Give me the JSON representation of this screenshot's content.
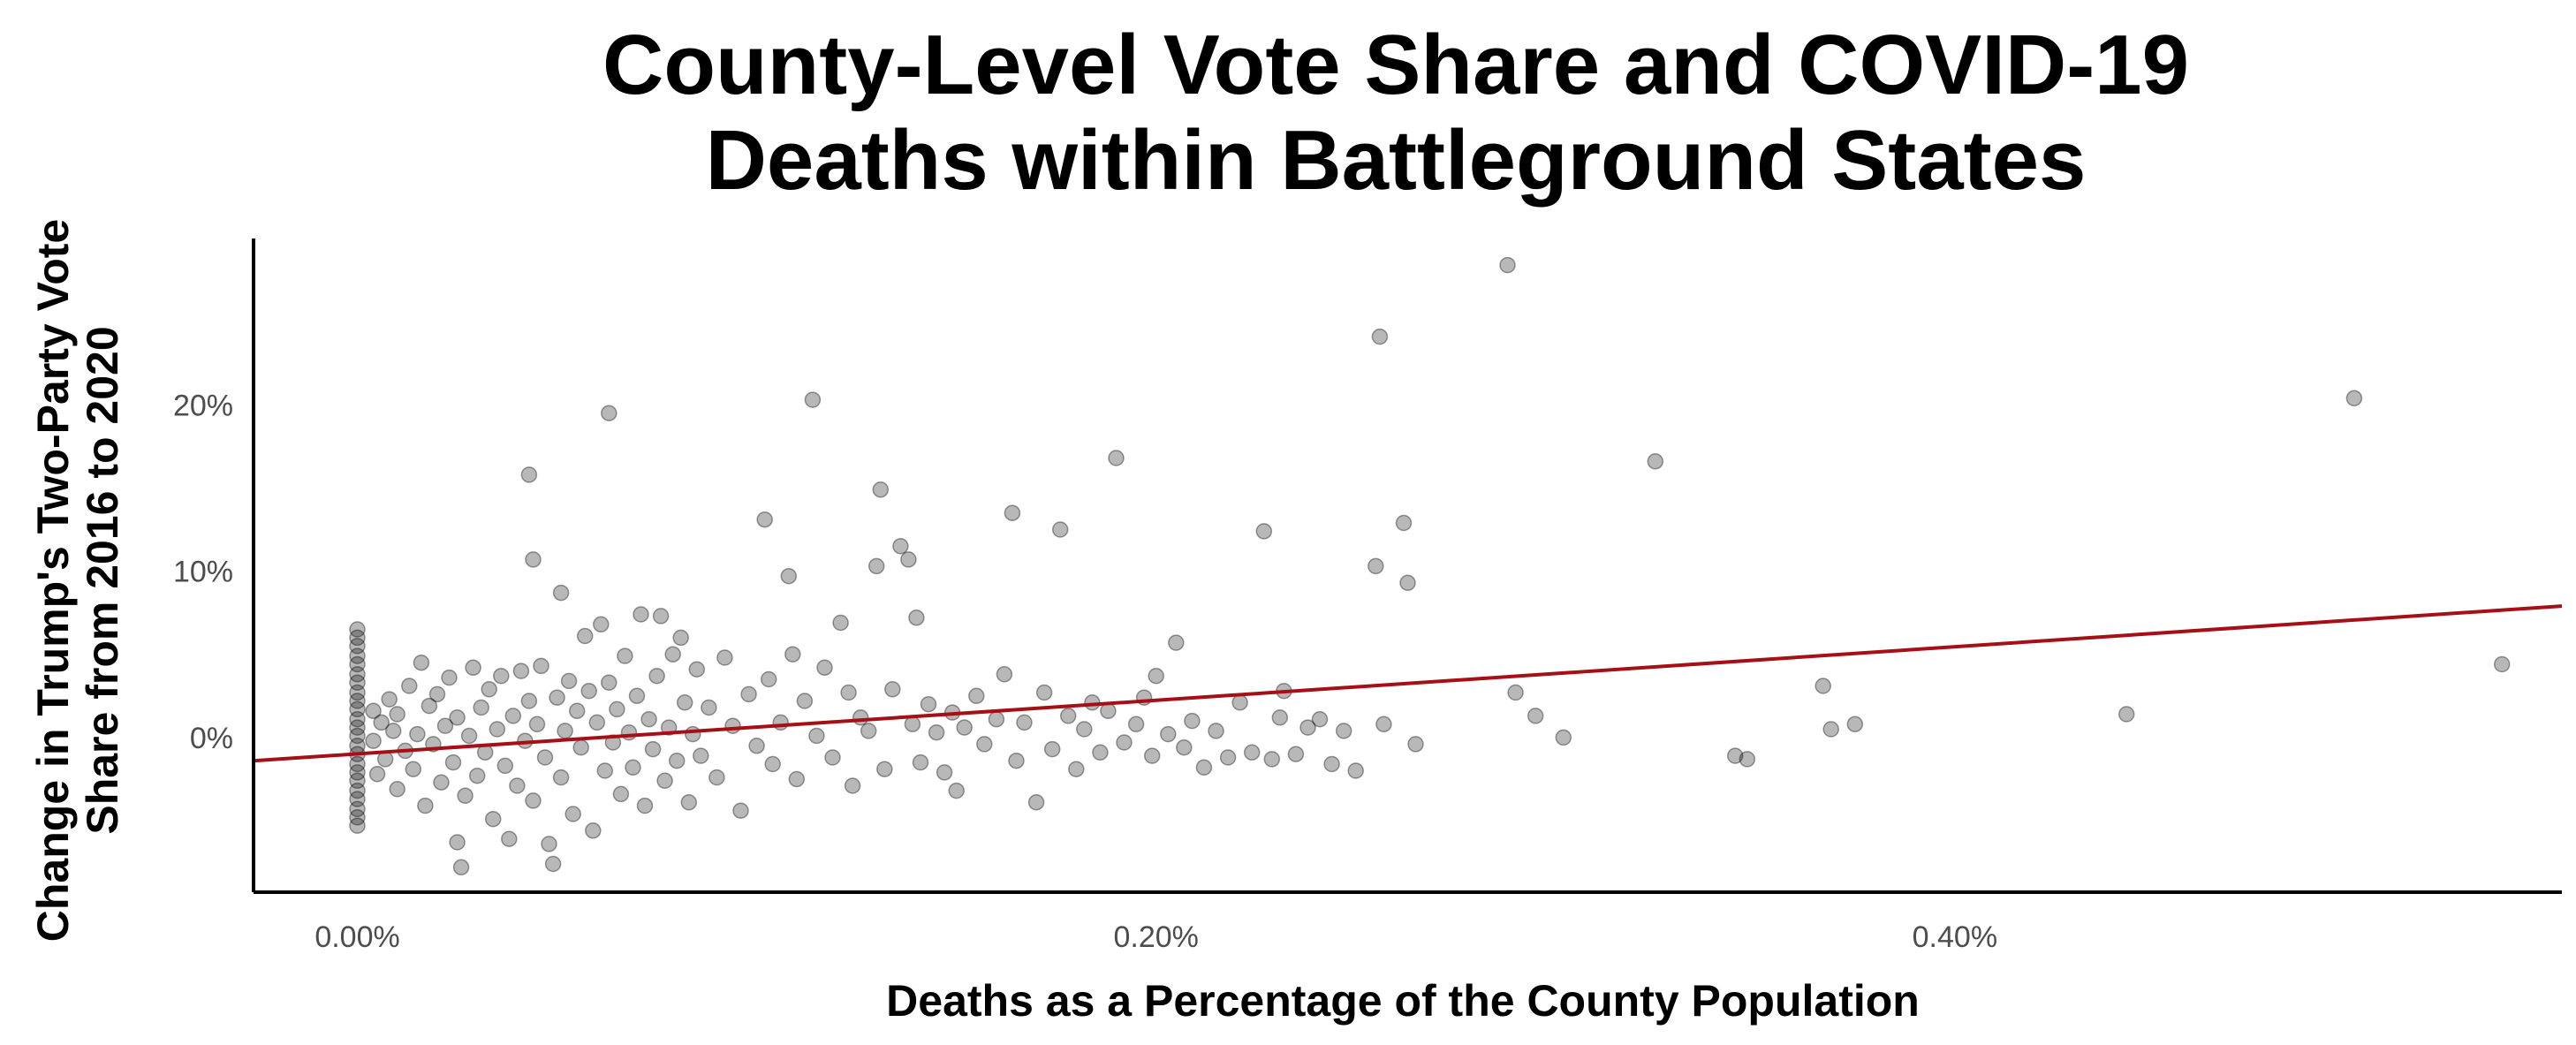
{
  "chart_data": {
    "type": "scatter",
    "title_lines": [
      "County-Level Vote Share and COVID-19",
      "Deaths within Battleground States"
    ],
    "xlabel": "Deaths as a Percentage of the County Population",
    "ylabel_lines": [
      "Change in Trump's Two-Party Vote",
      "Share from 2016 to 2020"
    ],
    "x_unit": "percent of county population",
    "y_unit": "percentage points",
    "xlim": [
      -0.026,
      0.552
    ],
    "ylim": [
      -9.3,
      30.0
    ],
    "x_ticks": [
      {
        "value": 0.0,
        "label": "0.00%"
      },
      {
        "value": 0.2,
        "label": "0.20%"
      },
      {
        "value": 0.4,
        "label": "0.40%"
      }
    ],
    "y_ticks": [
      {
        "value": 0,
        "label": "0%"
      },
      {
        "value": 10,
        "label": "10%"
      },
      {
        "value": 20,
        "label": "20%"
      }
    ],
    "grid": false,
    "point_color": "#000000",
    "point_opacity": 0.28,
    "trend_line": {
      "color": "#a50f15",
      "points": [
        [
          -0.026,
          -1.4
        ],
        [
          0.552,
          7.9
        ]
      ]
    },
    "points": [
      [
        0.0,
        6.5
      ],
      [
        0.0,
        6.0
      ],
      [
        0.0,
        5.5
      ],
      [
        0.0,
        4.9
      ],
      [
        0.0,
        4.4
      ],
      [
        0.0,
        3.8
      ],
      [
        0.0,
        3.3
      ],
      [
        0.0,
        2.7
      ],
      [
        0.0,
        2.2
      ],
      [
        0.0,
        1.7
      ],
      [
        0.0,
        1.1
      ],
      [
        0.0,
        0.6
      ],
      [
        0.0,
        0.1
      ],
      [
        0.0,
        -0.5
      ],
      [
        0.0,
        -1.0
      ],
      [
        0.0,
        -1.6
      ],
      [
        0.0,
        -2.1
      ],
      [
        0.0,
        -2.6
      ],
      [
        0.0,
        -3.2
      ],
      [
        0.0,
        -3.7
      ],
      [
        0.0,
        -4.3
      ],
      [
        0.0,
        -4.8
      ],
      [
        0.0,
        -5.3
      ],
      [
        0.004,
        1.6
      ],
      [
        0.004,
        -0.2
      ],
      [
        0.005,
        -2.2
      ],
      [
        0.006,
        0.9
      ],
      [
        0.007,
        -1.3
      ],
      [
        0.008,
        2.3
      ],
      [
        0.009,
        0.4
      ],
      [
        0.01,
        -3.1
      ],
      [
        0.01,
        1.4
      ],
      [
        0.012,
        -0.8
      ],
      [
        0.013,
        3.1
      ],
      [
        0.014,
        -1.9
      ],
      [
        0.015,
        0.2
      ],
      [
        0.016,
        4.5
      ],
      [
        0.017,
        -4.1
      ],
      [
        0.018,
        1.9
      ],
      [
        0.019,
        -0.4
      ],
      [
        0.02,
        2.6
      ],
      [
        0.021,
        -2.7
      ],
      [
        0.022,
        0.7
      ],
      [
        0.023,
        3.6
      ],
      [
        0.024,
        -1.5
      ],
      [
        0.025,
        -6.3
      ],
      [
        0.025,
        1.2
      ],
      [
        0.026,
        -7.8
      ],
      [
        0.027,
        -3.5
      ],
      [
        0.028,
        0.1
      ],
      [
        0.029,
        4.2
      ],
      [
        0.03,
        -2.3
      ],
      [
        0.031,
        1.8
      ],
      [
        0.032,
        -0.9
      ],
      [
        0.033,
        2.9
      ],
      [
        0.034,
        -4.9
      ],
      [
        0.035,
        0.5
      ],
      [
        0.036,
        3.7
      ],
      [
        0.037,
        -1.7
      ],
      [
        0.038,
        -6.1
      ],
      [
        0.039,
        1.3
      ],
      [
        0.04,
        -2.9
      ],
      [
        0.041,
        4.0
      ],
      [
        0.042,
        -0.2
      ],
      [
        0.043,
        15.8
      ],
      [
        0.043,
        2.2
      ],
      [
        0.044,
        10.7
      ],
      [
        0.044,
        -3.8
      ],
      [
        0.045,
        0.8
      ],
      [
        0.046,
        4.3
      ],
      [
        0.047,
        -1.2
      ],
      [
        0.048,
        -6.4
      ],
      [
        0.049,
        -7.6
      ],
      [
        0.05,
        2.4
      ],
      [
        0.051,
        8.7
      ],
      [
        0.051,
        -2.4
      ],
      [
        0.052,
        0.4
      ],
      [
        0.053,
        3.4
      ],
      [
        0.054,
        -4.6
      ],
      [
        0.055,
        1.6
      ],
      [
        0.056,
        -0.6
      ],
      [
        0.057,
        6.1
      ],
      [
        0.058,
        2.8
      ],
      [
        0.059,
        -5.6
      ],
      [
        0.06,
        0.9
      ],
      [
        0.061,
        6.8
      ],
      [
        0.062,
        -2.0
      ],
      [
        0.063,
        19.5
      ],
      [
        0.063,
        3.3
      ],
      [
        0.064,
        -0.3
      ],
      [
        0.065,
        1.7
      ],
      [
        0.066,
        -3.4
      ],
      [
        0.067,
        4.9
      ],
      [
        0.068,
        0.3
      ],
      [
        0.069,
        -1.8
      ],
      [
        0.07,
        2.5
      ],
      [
        0.071,
        7.4
      ],
      [
        0.072,
        -4.1
      ],
      [
        0.073,
        1.1
      ],
      [
        0.074,
        -0.7
      ],
      [
        0.075,
        3.7
      ],
      [
        0.076,
        7.3
      ],
      [
        0.077,
        -2.6
      ],
      [
        0.078,
        0.6
      ],
      [
        0.079,
        5.0
      ],
      [
        0.08,
        -1.4
      ],
      [
        0.081,
        6.0
      ],
      [
        0.082,
        2.1
      ],
      [
        0.083,
        -3.9
      ],
      [
        0.084,
        0.2
      ],
      [
        0.085,
        4.1
      ],
      [
        0.086,
        -1.1
      ],
      [
        0.088,
        1.8
      ],
      [
        0.09,
        -2.4
      ],
      [
        0.092,
        4.8
      ],
      [
        0.094,
        0.7
      ],
      [
        0.096,
        -4.4
      ],
      [
        0.098,
        2.6
      ],
      [
        0.1,
        -0.5
      ],
      [
        0.102,
        13.1
      ],
      [
        0.103,
        3.5
      ],
      [
        0.104,
        -1.6
      ],
      [
        0.106,
        0.9
      ],
      [
        0.108,
        9.7
      ],
      [
        0.109,
        5.0
      ],
      [
        0.11,
        -2.5
      ],
      [
        0.112,
        2.2
      ],
      [
        0.114,
        20.3
      ],
      [
        0.115,
        0.1
      ],
      [
        0.117,
        4.2
      ],
      [
        0.119,
        -1.2
      ],
      [
        0.121,
        6.9
      ],
      [
        0.123,
        2.7
      ],
      [
        0.124,
        -2.9
      ],
      [
        0.126,
        1.2
      ],
      [
        0.128,
        0.4
      ],
      [
        0.13,
        10.3
      ],
      [
        0.131,
        14.9
      ],
      [
        0.132,
        -1.9
      ],
      [
        0.134,
        2.9
      ],
      [
        0.136,
        11.5
      ],
      [
        0.138,
        10.7
      ],
      [
        0.139,
        0.8
      ],
      [
        0.14,
        7.2
      ],
      [
        0.141,
        -1.5
      ],
      [
        0.143,
        2.0
      ],
      [
        0.145,
        0.3
      ],
      [
        0.147,
        -2.1
      ],
      [
        0.149,
        1.5
      ],
      [
        0.15,
        -3.2
      ],
      [
        0.152,
        0.6
      ],
      [
        0.155,
        2.5
      ],
      [
        0.157,
        -0.4
      ],
      [
        0.16,
        1.1
      ],
      [
        0.162,
        3.8
      ],
      [
        0.164,
        13.5
      ],
      [
        0.165,
        -1.4
      ],
      [
        0.167,
        0.9
      ],
      [
        0.17,
        -3.9
      ],
      [
        0.172,
        2.7
      ],
      [
        0.174,
        -0.7
      ],
      [
        0.176,
        12.5
      ],
      [
        0.178,
        1.3
      ],
      [
        0.18,
        -1.9
      ],
      [
        0.182,
        0.5
      ],
      [
        0.184,
        2.1
      ],
      [
        0.186,
        -0.9
      ],
      [
        0.188,
        1.6
      ],
      [
        0.19,
        16.8
      ],
      [
        0.192,
        -0.3
      ],
      [
        0.195,
        0.8
      ],
      [
        0.197,
        2.4
      ],
      [
        0.199,
        -1.1
      ],
      [
        0.2,
        3.7
      ],
      [
        0.203,
        0.2
      ],
      [
        0.205,
        5.7
      ],
      [
        0.207,
        -0.6
      ],
      [
        0.209,
        1.0
      ],
      [
        0.212,
        -1.8
      ],
      [
        0.215,
        0.4
      ],
      [
        0.218,
        -1.2
      ],
      [
        0.221,
        2.1
      ],
      [
        0.224,
        -0.9
      ],
      [
        0.227,
        12.4
      ],
      [
        0.229,
        -1.3
      ],
      [
        0.231,
        1.2
      ],
      [
        0.232,
        2.8
      ],
      [
        0.235,
        -1.0
      ],
      [
        0.238,
        0.6
      ],
      [
        0.241,
        1.1
      ],
      [
        0.244,
        -1.6
      ],
      [
        0.247,
        0.4
      ],
      [
        0.25,
        -2.0
      ],
      [
        0.255,
        10.3
      ],
      [
        0.256,
        24.1
      ],
      [
        0.257,
        0.8
      ],
      [
        0.262,
        12.9
      ],
      [
        0.263,
        9.3
      ],
      [
        0.265,
        -0.4
      ],
      [
        0.288,
        28.4
      ],
      [
        0.29,
        2.7
      ],
      [
        0.295,
        1.3
      ],
      [
        0.302,
        0.0
      ],
      [
        0.325,
        16.6
      ],
      [
        0.345,
        -1.1
      ],
      [
        0.348,
        -1.3
      ],
      [
        0.367,
        3.1
      ],
      [
        0.369,
        0.5
      ],
      [
        0.375,
        0.8
      ],
      [
        0.443,
        1.4
      ],
      [
        0.5,
        20.4
      ],
      [
        0.537,
        4.4
      ]
    ]
  }
}
